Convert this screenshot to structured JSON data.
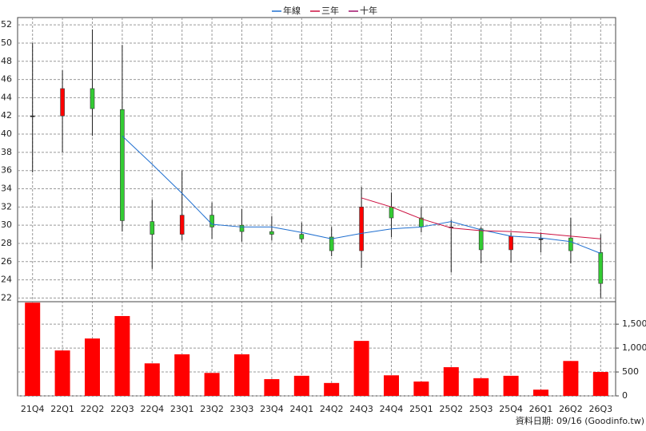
{
  "chart_data": {
    "type": "candlestick",
    "categories": [
      "21Q4",
      "22Q1",
      "22Q2",
      "22Q3",
      "22Q4",
      "23Q1",
      "23Q2",
      "23Q3",
      "23Q4",
      "24Q1",
      "24Q2",
      "24Q3",
      "24Q4",
      "25Q1",
      "25Q2",
      "25Q3",
      "25Q4",
      "26Q1",
      "26Q2",
      "26Q3"
    ],
    "open": [
      42,
      42,
      45,
      42.7,
      30.4,
      29,
      31.1,
      30,
      29.3,
      29,
      28.7,
      27.2,
      32,
      30.8,
      29.8,
      29.6,
      27.3,
      28.5,
      28.6,
      27
    ],
    "high": [
      50,
      47,
      51.5,
      49.8,
      32.8,
      36,
      32.5,
      31.8,
      31,
      30.3,
      29.8,
      34.2,
      33.6,
      32,
      30.6,
      29.8,
      29.2,
      29.2,
      30.8,
      29
    ],
    "low": [
      35.8,
      38,
      39.8,
      29.3,
      25.2,
      28.3,
      28.5,
      28.2,
      28.3,
      28.1,
      26.6,
      25.3,
      28.7,
      29.2,
      24.8,
      25.8,
      25.9,
      27,
      25.8,
      22
    ],
    "close": [
      42,
      45,
      42.8,
      30.5,
      29,
      31.1,
      29.8,
      29.3,
      29,
      28.5,
      27.2,
      32,
      30.8,
      29.8,
      29.8,
      27.3,
      28.8,
      28.5,
      27.2,
      23.6
    ],
    "up_color": "#ff0000",
    "down_color": "#33cc33",
    "series": [
      {
        "name": "年線",
        "color": "#1f6fd0",
        "values": [
          null,
          null,
          null,
          39.8,
          36.7,
          33.5,
          30.1,
          29.8,
          29.8,
          29.2,
          28.5,
          29.1,
          29.6,
          29.8,
          30.4,
          29.5,
          28.8,
          28.6,
          28.2,
          26.9
        ]
      },
      {
        "name": "三年",
        "color": "#cc1040",
        "values": [
          null,
          null,
          null,
          null,
          null,
          null,
          null,
          null,
          null,
          null,
          null,
          33,
          32,
          30.7,
          29.7,
          29.4,
          29.3,
          29.1,
          28.8,
          28.5
        ]
      },
      {
        "name": "十年",
        "color": "#a0106a",
        "values": [
          null,
          null,
          null,
          null,
          null,
          null,
          null,
          null,
          null,
          null,
          null,
          null,
          null,
          null,
          null,
          null,
          null,
          null,
          null,
          null
        ]
      }
    ],
    "ylim": [
      21.6,
      52.8
    ],
    "yticks": [
      22,
      24,
      26,
      28,
      30,
      32,
      34,
      36,
      38,
      40,
      42,
      44,
      46,
      48,
      50,
      52
    ],
    "volume": {
      "color": "#ff0000",
      "values": [
        1950,
        950,
        1200,
        1670,
        680,
        870,
        480,
        870,
        350,
        420,
        270,
        1150,
        430,
        300,
        600,
        370,
        420,
        130,
        730,
        500
      ],
      "ylim": [
        0,
        1970
      ],
      "yticks": [
        0,
        500,
        {
          "value": 1000,
          "label": "1,000"
        },
        {
          "value": 1500,
          "label": "1,500"
        }
      ]
    },
    "grid": true,
    "footer": "資料日期: 09/16  (Goodinfo.tw)"
  }
}
